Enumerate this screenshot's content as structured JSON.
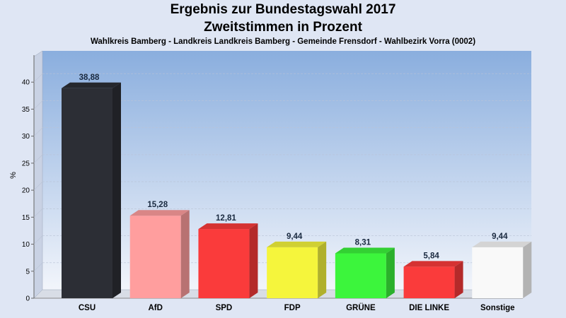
{
  "header": {
    "title": "Ergebnis zur Bundestagswahl 2017",
    "title2": "Zweitstimmen in Prozent",
    "subtitle": "Wahlkreis Bamberg - Landkreis Landkreis Bamberg - Gemeinde Frensdorf - Wahlbezirk Vorra (0002)"
  },
  "chart_data": {
    "type": "bar",
    "title": "Ergebnis zur Bundestagswahl 2017",
    "subtitle": "Zweitstimmen in Prozent",
    "ylabel": "%",
    "xlabel": "",
    "ylim": [
      0,
      45
    ],
    "yticks": [
      0,
      5,
      10,
      15,
      20,
      25,
      30,
      35,
      40
    ],
    "grid": true,
    "categories": [
      "CSU",
      "AfD",
      "SPD",
      "FDP",
      "GRÜNE",
      "DIE LINKE",
      "Sonstige"
    ],
    "values": [
      38.88,
      15.28,
      12.81,
      9.44,
      8.31,
      5.84,
      9.44
    ],
    "value_labels": [
      "38,88",
      "15,28",
      "12,81",
      "9,44",
      "8,31",
      "5,84",
      "9,44"
    ],
    "colors": [
      "#2c2e35",
      "#ff9e9e",
      "#fa3b3b",
      "#f5f53c",
      "#3cf53c",
      "#fa3b3b",
      "#f9f9f9"
    ]
  }
}
